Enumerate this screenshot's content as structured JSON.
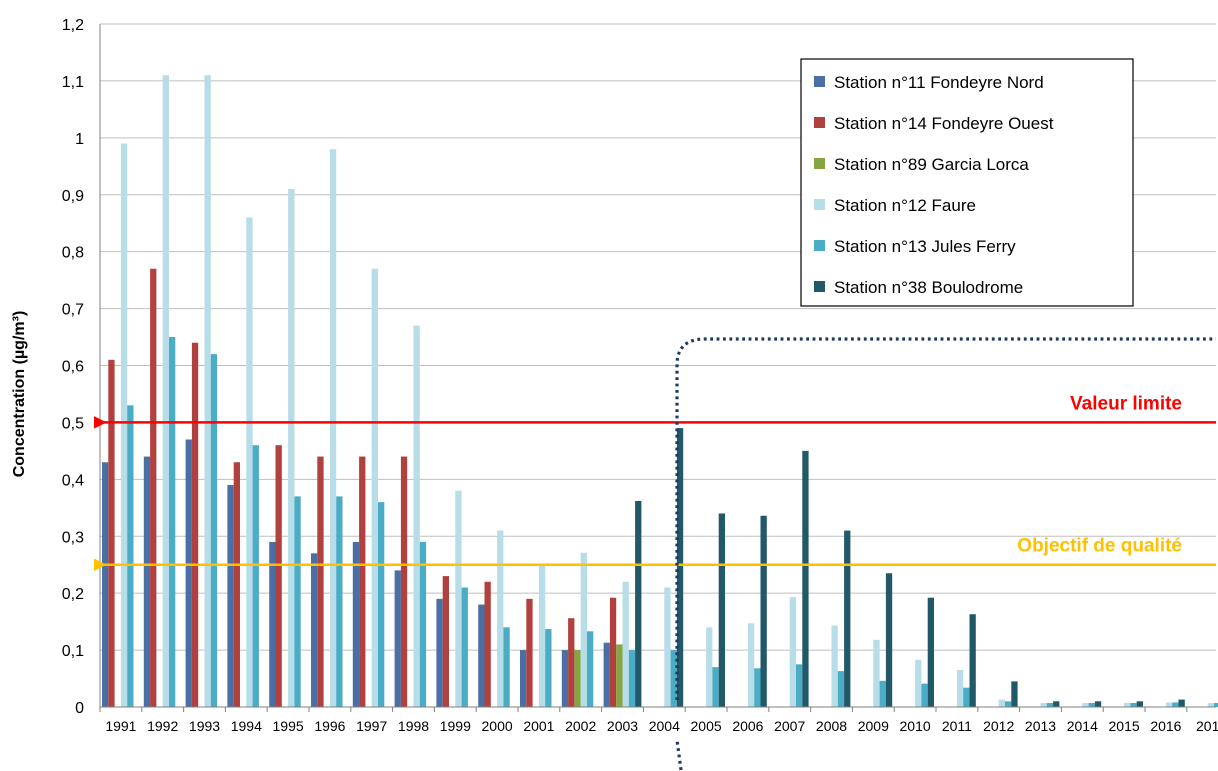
{
  "chart_data": {
    "type": "bar",
    "title": "",
    "xlabel": "",
    "ylabel": "Concentration (µg/m³)",
    "ylim": [
      0,
      1.2
    ],
    "yticks": [
      "0",
      "0,1",
      "0,2",
      "0,3",
      "0,4",
      "0,5",
      "0,6",
      "0,7",
      "0,8",
      "0,9",
      "1",
      "1,1",
      "1,2"
    ],
    "ytick_values": [
      0,
      0.1,
      0.2,
      0.3,
      0.4,
      0.5,
      0.6,
      0.7,
      0.8,
      0.9,
      1.0,
      1.1,
      1.2
    ],
    "categories": [
      "1991",
      "1992",
      "1993",
      "1994",
      "1995",
      "1996",
      "1997",
      "1998",
      "1999",
      "2000",
      "2001",
      "2002",
      "2003",
      "2004",
      "2005",
      "2006",
      "2007",
      "2008",
      "2009",
      "2010",
      "2011",
      "2012",
      "2013",
      "2014",
      "2015",
      "2016",
      "201"
    ],
    "grid": "horizontal",
    "legend_position": "top-right",
    "series": [
      {
        "name": "Station n°11 Fondeyre Nord",
        "color": "#4a6fa5",
        "values": [
          0.43,
          0.44,
          0.47,
          0.39,
          0.29,
          0.27,
          0.29,
          0.24,
          0.19,
          0.18,
          0.1,
          0.1,
          0.113,
          null,
          null,
          null,
          null,
          null,
          null,
          null,
          null,
          null,
          null,
          null,
          null,
          null,
          null
        ]
      },
      {
        "name": "Station n°14 Fondeyre Ouest",
        "color": "#b0413e",
        "values": [
          0.61,
          0.77,
          0.64,
          0.43,
          0.46,
          0.44,
          0.44,
          0.44,
          0.23,
          0.22,
          0.19,
          0.156,
          0.192,
          null,
          null,
          null,
          null,
          null,
          null,
          null,
          null,
          null,
          null,
          null,
          null,
          null,
          null
        ]
      },
      {
        "name": "Station n°89 Garcia Lorca",
        "color": "#86a542",
        "values": [
          null,
          null,
          null,
          null,
          null,
          null,
          null,
          null,
          null,
          null,
          null,
          0.1,
          0.11,
          null,
          null,
          null,
          null,
          null,
          null,
          null,
          null,
          null,
          null,
          null,
          null,
          null,
          null
        ]
      },
      {
        "name": "Station n°12 Faure",
        "color": "#b7dde8",
        "values": [
          0.99,
          1.11,
          1.11,
          0.86,
          0.91,
          0.98,
          0.77,
          0.67,
          0.38,
          0.31,
          0.25,
          0.271,
          0.22,
          0.21,
          0.14,
          0.147,
          0.193,
          0.143,
          0.118,
          0.083,
          0.065,
          0.013,
          0.007,
          0.007,
          0.007,
          0.008,
          0.007
        ]
      },
      {
        "name": "Station n°13 Jules Ferry",
        "color": "#4bacc6",
        "values": [
          0.53,
          0.65,
          0.62,
          0.46,
          0.37,
          0.37,
          0.36,
          0.29,
          0.21,
          0.14,
          0.137,
          0.133,
          0.1,
          0.1,
          0.07,
          0.068,
          0.075,
          0.063,
          0.046,
          0.041,
          0.034,
          0.01,
          0.007,
          0.007,
          0.007,
          0.008,
          0.007
        ]
      },
      {
        "name": "Station n°38 Boulodrome",
        "color": "#215968",
        "values": [
          null,
          null,
          null,
          null,
          null,
          null,
          null,
          null,
          null,
          null,
          null,
          null,
          0.362,
          0.49,
          0.34,
          0.336,
          0.45,
          0.31,
          0.235,
          0.192,
          0.163,
          0.045,
          0.01,
          0.01,
          0.01,
          0.013,
          null
        ]
      }
    ],
    "reference_lines": [
      {
        "label": "Valeur limite",
        "value": 0.5,
        "color": "#ff0000"
      },
      {
        "label": "Objectif de qualité",
        "value": 0.25,
        "color": "#ffc000"
      }
    ],
    "annotation_color": "#1f3864"
  }
}
